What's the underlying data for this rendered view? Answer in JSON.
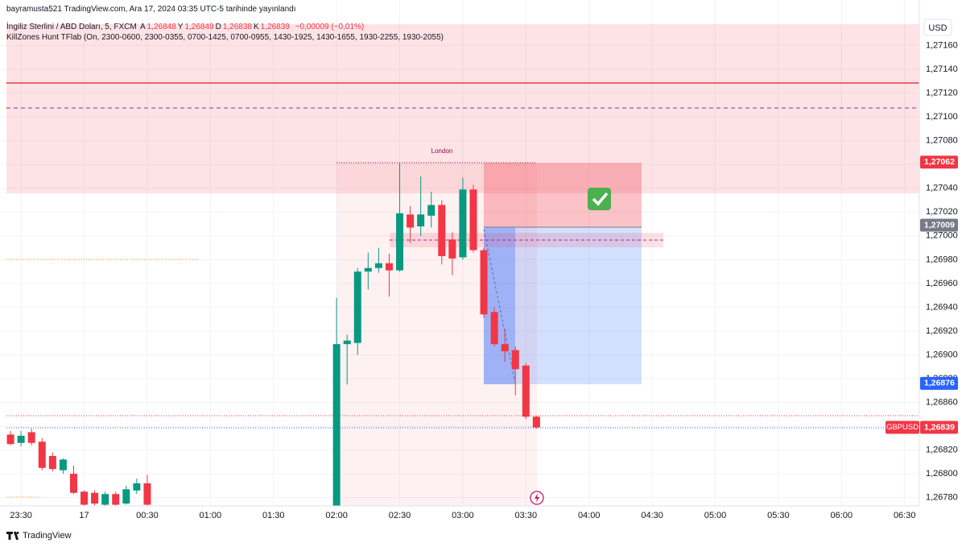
{
  "header": {
    "publisher": "bayramusta521 TradingView.com, Ara 17, 2024 03:35 UTC-5 tarihinde yayınlandı",
    "symbol": "İngiliz Sterlini / ABD Doları, 5, FXCM",
    "ohlc": [
      {
        "key": "A",
        "text": "1,26848"
      },
      {
        "key": "Y",
        "text": "1,26849"
      },
      {
        "key": "D",
        "text": "1,26838"
      },
      {
        "key": "K",
        "text": "1,26839"
      }
    ],
    "change": "−0,00009 (−0,01%)",
    "indicator": "KillZones Hunt TFlab (On, 2300-0600, 2300-0355, 0700-1425, 0700-0955, 1430-1925, 1430-1655, 1930-2255, 1930-2055)",
    "currency": "USD",
    "session": "London",
    "brand": "TradingView"
  },
  "chart_data": {
    "type": "candlestick",
    "up_color": "#089981",
    "down_color": "#f23645",
    "grid": true,
    "x": [
      25,
      30,
      35,
      40,
      45,
      50,
      55,
      60,
      65,
      70,
      75,
      80,
      85,
      90,
      180,
      185,
      190,
      195,
      200,
      205,
      210,
      215,
      220,
      225,
      230,
      235,
      240,
      245,
      250,
      255,
      260,
      265,
      270,
      275
    ],
    "open": [
      1.26833,
      1.26826,
      1.26835,
      1.26827,
      1.26815,
      1.26803,
      1.268,
      1.26785,
      1.26784,
      1.26774,
      1.26783,
      1.26775,
      1.26786,
      1.26792,
      1.26773,
      1.26909,
      1.2691,
      1.2697,
      1.26973,
      1.26977,
      1.26971,
      1.27018,
      1.27008,
      1.27017,
      1.27026,
      1.26997,
      1.26982,
      1.27039,
      1.26988,
      1.26936,
      1.26909,
      1.26904,
      1.26891,
      1.26848
    ],
    "high": [
      1.26836,
      1.26836,
      1.26838,
      1.2683,
      1.26818,
      1.26813,
      1.26807,
      1.26786,
      1.26786,
      1.26785,
      1.26785,
      1.2679,
      1.26796,
      1.26799,
      1.26948,
      1.26917,
      1.26973,
      1.26986,
      1.2699,
      1.26985,
      1.27061,
      1.27025,
      1.2705,
      1.27037,
      1.2703,
      1.27003,
      1.27049,
      1.27043,
      1.2699,
      1.2694,
      1.26922,
      1.26907,
      1.26893,
      1.26849
    ],
    "low": [
      1.26824,
      1.26823,
      1.26824,
      1.26803,
      1.26802,
      1.268,
      1.26783,
      1.26772,
      1.26773,
      1.26773,
      1.26773,
      1.26774,
      1.26783,
      1.26773,
      1.2677,
      1.26875,
      1.269,
      1.26955,
      1.26969,
      1.26949,
      1.2697,
      1.26994,
      1.27,
      1.27007,
      1.26976,
      1.26967,
      1.2698,
      1.26986,
      1.26931,
      1.26907,
      1.26894,
      1.26866,
      1.26846,
      1.26838
    ],
    "close": [
      1.26825,
      1.26832,
      1.26826,
      1.26805,
      1.26804,
      1.26812,
      1.26784,
      1.26774,
      1.26775,
      1.26783,
      1.26774,
      1.26787,
      1.26792,
      1.26774,
      1.26909,
      1.26912,
      1.2697,
      1.26973,
      1.26977,
      1.26971,
      1.27019,
      1.27007,
      1.27018,
      1.27026,
      1.26983,
      1.26981,
      1.27039,
      1.26988,
      1.26934,
      1.26909,
      1.26903,
      1.26888,
      1.26848,
      1.26839
    ],
    "xlim": [
      20,
      457
    ],
    "xticks": [
      {
        "value": 30,
        "label": "23:30"
      },
      {
        "value": 60,
        "label": "17"
      },
      {
        "value": 90,
        "label": "00:30"
      },
      {
        "value": 120,
        "label": "01:00"
      },
      {
        "value": 150,
        "label": "01:30"
      },
      {
        "value": 180,
        "label": "02:00"
      },
      {
        "value": 210,
        "label": "02:30"
      },
      {
        "value": 240,
        "label": "03:00"
      },
      {
        "value": 270,
        "label": "03:30"
      },
      {
        "value": 300,
        "label": "04:00"
      },
      {
        "value": 330,
        "label": "04:30"
      },
      {
        "value": 360,
        "label": "05:00"
      },
      {
        "value": 390,
        "label": "05:30"
      },
      {
        "value": 420,
        "label": "06:00"
      },
      {
        "value": 450,
        "label": "06:30"
      }
    ],
    "ylim": [
      1.26773,
      1.27178
    ],
    "yticks": [
      {
        "value": 1.2678,
        "label": "1,26780"
      },
      {
        "value": 1.268,
        "label": "1,26800"
      },
      {
        "value": 1.2682,
        "label": "1,26820"
      },
      {
        "value": 1.2684,
        "label": "1,26840"
      },
      {
        "value": 1.2686,
        "label": "1,26860"
      },
      {
        "value": 1.2688,
        "label": "1,26880"
      },
      {
        "value": 1.269,
        "label": "1,26900"
      },
      {
        "value": 1.2692,
        "label": "1,26920"
      },
      {
        "value": 1.2694,
        "label": "1,26940"
      },
      {
        "value": 1.2696,
        "label": "1,26960"
      },
      {
        "value": 1.2698,
        "label": "1,26980"
      },
      {
        "value": 1.27,
        "label": "1,27000"
      },
      {
        "value": 1.2702,
        "label": "1,27020"
      },
      {
        "value": 1.2704,
        "label": "1,27040"
      },
      {
        "value": 1.2706,
        "label": "1,27060"
      },
      {
        "value": 1.2708,
        "label": "1,27080"
      },
      {
        "value": 1.271,
        "label": "1,27100"
      },
      {
        "value": 1.2712,
        "label": "1,27120"
      },
      {
        "value": 1.2714,
        "label": "1,27140"
      },
      {
        "value": 1.2716,
        "label": "1,27160"
      }
    ],
    "price_labels": [
      {
        "value": 1.27062,
        "label": "1,27062",
        "color": "#f23645"
      },
      {
        "value": 1.27009,
        "label": "1,27009",
        "color": "#787b86"
      },
      {
        "value": 1.26876,
        "label": "1,26876",
        "color": "#2962ff"
      },
      {
        "value": 1.26839,
        "label": "1,26839",
        "color": "#f23645",
        "tag": "GBPUSD"
      }
    ]
  }
}
